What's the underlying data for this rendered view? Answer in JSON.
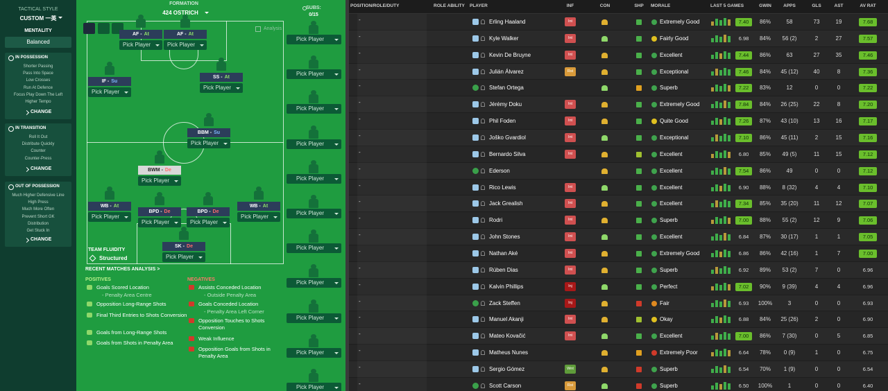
{
  "sidebar": {
    "title": "TACTICAL STYLE",
    "style": "CUSTOM 一英",
    "mentality_label": "MENTALITY",
    "mentality": "Balanced",
    "sections": [
      {
        "title": "IN POSSESSION",
        "items": [
          "Shorter Passing",
          "Pass Into Space",
          "Low Crosses",
          "Run At Defence",
          "Focus Play Down The Left",
          "Higher Tempo"
        ],
        "button": "CHANGE"
      },
      {
        "title": "IN TRANSITION",
        "items": [
          "Roll It Out",
          "Distribute Quickly",
          "Counter",
          "Counter-Press"
        ],
        "button": "CHANGE"
      },
      {
        "title": "OUT OF POSSESSION",
        "items": [
          "Much Higher Defensive Line",
          "High Press",
          "Much More Often",
          "Prevent Short GK",
          "Distribution",
          "Get Stuck In"
        ],
        "button": "CHANGE"
      }
    ]
  },
  "pitch": {
    "formation_label": "FORMATION",
    "formation": "424 OSTRICH",
    "analysis": "Analysis",
    "fluidity_label": "TEAM FLUIDITY",
    "fluidity": "Structured",
    "slots": [
      {
        "role": "AF -",
        "duty": "At",
        "button": "Pick Player"
      },
      {
        "role": "AF -",
        "duty": "At",
        "button": "Pick Player"
      },
      {
        "role": "SS -",
        "duty": "At",
        "button": "Pick Player"
      },
      {
        "role": "IF -",
        "duty": "Su",
        "button": "Pick Player"
      },
      {
        "role": "BBM -",
        "duty": "Su",
        "button": "Pick Player"
      },
      {
        "role": "BWM -",
        "duty": "De",
        "button": "Pick Player"
      },
      {
        "role": "WB -",
        "duty": "At",
        "button": "Pick Player"
      },
      {
        "role": "BPD -",
        "duty": "De",
        "button": "Pick Player"
      },
      {
        "role": "BPD -",
        "duty": "De",
        "button": "Pick Player"
      },
      {
        "role": "WB -",
        "duty": "At",
        "button": "Pick Player"
      },
      {
        "role": "SK -",
        "duty": "De",
        "button": "Pick Player"
      }
    ]
  },
  "subs": {
    "label": "SUBS:",
    "count": "0/15",
    "slots": [
      "Pick Player",
      "Pick Player",
      "Pick Player",
      "Pick Player",
      "Pick Player",
      "Pick Player",
      "Pick Player",
      "Pick Player",
      "Pick Player",
      "Pick Player",
      "Pick Player"
    ]
  },
  "analysis": {
    "title": "RECENT MATCHES ANALYSIS >",
    "positives_label": "POSITIVES",
    "positives": [
      {
        "label": "Goals Scored Location",
        "detail": "- Penalty Area Centre"
      },
      {
        "label": "Opposition Long-Range Shots"
      },
      {
        "label": "Final Third Entries to Shots Conversion"
      },
      {
        "label": "Goals from Long-Range Shots"
      },
      {
        "label": "Goals from Shots in Penalty Area"
      }
    ],
    "negatives_label": "NEGATIVES",
    "negatives": [
      {
        "label": "Assists Conceded Location",
        "detail": "- Outside Penalty Area"
      },
      {
        "label": "Goals Conceded Location",
        "detail": "- Penalty Area Left Corner"
      },
      {
        "label": "Opposition Touches to Shots Conversion"
      },
      {
        "label": "Weak Influence"
      },
      {
        "label": "Opposition Goals from Shots in Penalty Area"
      }
    ]
  },
  "table": {
    "columns": [
      "POSITION/ROLE/DUTY",
      "ROLE ABILITY",
      "PLAYER",
      "INF",
      "CON",
      "SHP",
      "MORALE",
      "LAST 5 GAMES",
      "GWIN",
      "APPS",
      "GLS",
      "AST",
      "AV RAT"
    ],
    "rows": [
      {
        "position": "-",
        "player": "Erling Haaland",
        "inf": "Int",
        "morale": "Extremely Good",
        "last5": "7.40",
        "gwin": "86%",
        "apps": "58",
        "gls": 73,
        "ast": 19,
        "avrat": "7.68"
      },
      {
        "position": "-",
        "player": "Kyle Walker",
        "inf": "Int",
        "morale": "Fairly Good",
        "last5": "6.98",
        "gwin": "84%",
        "apps": "56 (2)",
        "gls": 2,
        "ast": 27,
        "avrat": "7.57"
      },
      {
        "position": "-",
        "player": "Kevin De Bruyne",
        "inf": "Int",
        "morale": "Excellent",
        "last5": "7.44",
        "gwin": "86%",
        "apps": "63",
        "gls": 27,
        "ast": 35,
        "avrat": "7.46"
      },
      {
        "position": "-",
        "player": "Julián Álvarez",
        "inf": "Rst",
        "morale": "Exceptional",
        "last5": "7.46",
        "gwin": "84%",
        "apps": "45 (12)",
        "gls": 40,
        "ast": 8,
        "avrat": "7.36"
      },
      {
        "position": "-",
        "player": "Stefan Ortega",
        "inf": null,
        "morale": "Superb",
        "last5": "7.22",
        "gwin": "83%",
        "apps": "12",
        "gls": 0,
        "ast": 0,
        "avrat": "7.22"
      },
      {
        "position": "-",
        "player": "Jérémy Doku",
        "inf": "Int",
        "morale": "Extremely Good",
        "last5": "7.84",
        "gwin": "84%",
        "apps": "26 (25)",
        "gls": 22,
        "ast": 8,
        "avrat": "7.20"
      },
      {
        "position": "-",
        "player": "Phil Foden",
        "inf": "Int",
        "morale": "Quite Good",
        "last5": "7.26",
        "gwin": "87%",
        "apps": "43 (10)",
        "gls": 13,
        "ast": 16,
        "avrat": "7.17"
      },
      {
        "position": "-",
        "player": "Joško Gvardiol",
        "inf": "Int",
        "morale": "Exceptional",
        "last5": "7.10",
        "gwin": "86%",
        "apps": "45 (11)",
        "gls": 2,
        "ast": 15,
        "avrat": "7.16"
      },
      {
        "position": "-",
        "player": "Bernardo Silva",
        "inf": "Int",
        "morale": "Excellent",
        "last5": "6.80",
        "gwin": "85%",
        "apps": "49 (5)",
        "gls": 11,
        "ast": 15,
        "avrat": "7.12"
      },
      {
        "position": "-",
        "player": "Ederson",
        "inf": null,
        "morale": "Excellent",
        "last5": "7.54",
        "gwin": "86%",
        "apps": "49",
        "gls": 0,
        "ast": 0,
        "avrat": "7.12"
      },
      {
        "position": "-",
        "player": "Rico Lewis",
        "inf": "Int",
        "morale": "Excellent",
        "last5": "6.90",
        "gwin": "88%",
        "apps": "8 (32)",
        "gls": 4,
        "ast": 4,
        "avrat": "7.10"
      },
      {
        "position": "-",
        "player": "Jack Grealish",
        "inf": "Int",
        "morale": "Excellent",
        "last5": "7.34",
        "gwin": "85%",
        "apps": "35 (20)",
        "gls": 11,
        "ast": 12,
        "avrat": "7.07"
      },
      {
        "position": "-",
        "player": "Rodri",
        "inf": "Int",
        "morale": "Superb",
        "last5": "7.00",
        "gwin": "88%",
        "apps": "55 (2)",
        "gls": 12,
        "ast": 9,
        "avrat": "7.06"
      },
      {
        "position": "-",
        "player": "John Stones",
        "inf": "Int",
        "morale": "Excellent",
        "last5": "6.84",
        "gwin": "87%",
        "apps": "30 (17)",
        "gls": 1,
        "ast": 1,
        "avrat": "7.05"
      },
      {
        "position": "-",
        "player": "Nathan Aké",
        "inf": "Int",
        "morale": "Extremely Good",
        "last5": "6.86",
        "gwin": "86%",
        "apps": "42 (16)",
        "gls": 1,
        "ast": 7,
        "avrat": "7.00"
      },
      {
        "position": "-",
        "player": "Rúben Dias",
        "inf": "Int",
        "morale": "Superb",
        "last5": "6.92",
        "gwin": "89%",
        "apps": "53 (2)",
        "gls": 7,
        "ast": 0,
        "avrat": "6.96"
      },
      {
        "position": "-",
        "player": "Kalvin Phillips",
        "inf": "Inj",
        "morale": "Perfect",
        "last5": "7.02",
        "gwin": "90%",
        "apps": "9 (39)",
        "gls": 4,
        "ast": 4,
        "avrat": "6.96"
      },
      {
        "position": "-",
        "player": "Zack Steffen",
        "inf": "Inj",
        "morale": "Fair",
        "last5": "6.93",
        "gwin": "100%",
        "apps": "3",
        "gls": 0,
        "ast": 0,
        "avrat": "6.93"
      },
      {
        "position": "-",
        "player": "Manuel Akanji",
        "inf": "Int",
        "morale": "Okay",
        "last5": "6.88",
        "gwin": "84%",
        "apps": "25 (26)",
        "gls": 2,
        "ast": 0,
        "avrat": "6.90"
      },
      {
        "position": "-",
        "player": "Mateo Kovačić",
        "inf": "Int",
        "morale": "Excellent",
        "last5": "7.00",
        "gwin": "86%",
        "apps": "7 (30)",
        "gls": 0,
        "ast": 5,
        "avrat": "6.85"
      },
      {
        "position": "-",
        "player": "Matheus Nunes",
        "inf": null,
        "morale": "Extremely Poor",
        "last5": "6.64",
        "gwin": "78%",
        "apps": "0 (9)",
        "gls": 1,
        "ast": 0,
        "avrat": "6.75"
      },
      {
        "position": "-",
        "player": "Sergio Gómez",
        "inf": "Wnt",
        "morale": "Superb",
        "last5": "6.54",
        "gwin": "70%",
        "apps": "1 (9)",
        "gls": 0,
        "ast": 0,
        "avrat": "6.54"
      },
      {
        "position": "-",
        "player": "Scott Carson",
        "inf": "Rst",
        "morale": "Superb",
        "last5": "6.50",
        "gwin": "100%",
        "apps": "1",
        "gls": 0,
        "ast": 0,
        "avrat": "6.40"
      }
    ]
  }
}
